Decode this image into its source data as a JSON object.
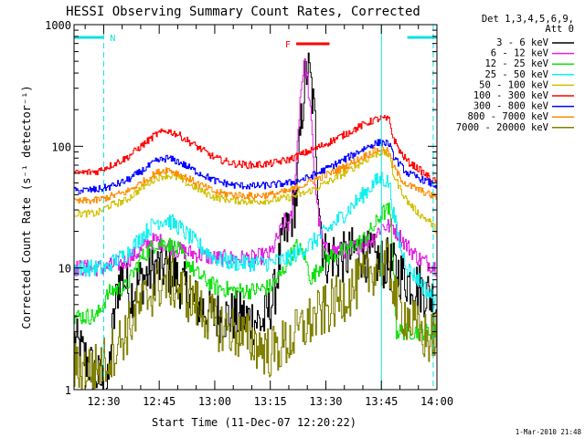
{
  "chart_data": {
    "type": "line",
    "title": "HESSI Observing Summary Count Rates, Corrected",
    "xlabel": "Start Time (11-Dec-07 12:20:22)",
    "ylabel": "Corrected Count Rate (s⁻¹ detector⁻¹)",
    "y_scale": "log",
    "ylim": [
      1,
      1000
    ],
    "xlim_minutes_after_12_20": [
      2,
      100
    ],
    "x_ticks": [
      {
        "label": "12:30",
        "min": 10
      },
      {
        "label": "12:45",
        "min": 25
      },
      {
        "label": "13:00",
        "min": 40
      },
      {
        "label": "13:15",
        "min": 55
      },
      {
        "label": "13:30",
        "min": 70
      },
      {
        "label": "13:45",
        "min": 85
      },
      {
        "label": "14:00",
        "min": 100
      }
    ],
    "y_ticks": [
      {
        "label": "1",
        "value": 1
      },
      {
        "label": "10",
        "value": 10
      },
      {
        "label": "100",
        "value": 100
      },
      {
        "label": "1000",
        "value": 1000
      }
    ],
    "legend_header": [
      "Det 1,3,4,5,6,9,",
      "Att 0"
    ],
    "legend_position": "right",
    "series": [
      {
        "name": "3 - 6 keV",
        "color": "#000000",
        "x": [
          2,
          8,
          11,
          12,
          14,
          15,
          17,
          20,
          24,
          27,
          30,
          35,
          40,
          45,
          50,
          53,
          55,
          56,
          58,
          60,
          62,
          63,
          64,
          65,
          66,
          67,
          68,
          69,
          70,
          71,
          72,
          75,
          78,
          80,
          82,
          85,
          86,
          88,
          90,
          92,
          95,
          98,
          100
        ],
        "y": [
          2.5,
          1.3,
          1.0,
          2.5,
          8,
          9,
          6,
          8,
          10,
          10,
          8,
          5,
          4,
          4,
          3.8,
          3.5,
          5,
          6,
          15,
          22,
          40,
          120,
          300,
          450,
          300,
          150,
          40,
          15,
          12,
          12,
          13,
          12,
          14,
          13,
          12,
          11,
          11,
          10,
          9,
          8,
          7,
          6,
          5
        ]
      },
      {
        "name": "6 - 12 keV",
        "color": "#e020e0",
        "x": [
          2,
          8,
          11,
          12,
          15,
          17,
          20,
          22,
          24,
          26,
          28,
          30,
          35,
          40,
          45,
          50,
          55,
          57,
          59,
          60,
          61,
          62,
          63,
          64,
          65,
          66,
          67,
          68,
          69,
          70,
          72,
          75,
          78,
          80,
          82,
          84,
          85,
          88,
          90,
          92,
          95,
          100
        ],
        "y": [
          10,
          10,
          10,
          10.5,
          11,
          12,
          14,
          16,
          17,
          16,
          15,
          14,
          13,
          12,
          12,
          12,
          13,
          18,
          25,
          22,
          30,
          80,
          250,
          500,
          350,
          150,
          50,
          25,
          16,
          14,
          14,
          14,
          15,
          16,
          17,
          20,
          22,
          22,
          18,
          15,
          12,
          10
        ]
      },
      {
        "name": "12 - 25 keV",
        "color": "#10e010",
        "x": [
          2,
          8,
          11,
          12,
          16,
          20,
          24,
          27,
          30,
          35,
          40,
          45,
          50,
          55,
          58,
          60,
          62,
          64,
          65,
          66,
          67,
          68,
          70,
          75,
          80,
          83,
          85,
          87,
          88,
          89,
          92,
          95,
          100
        ],
        "y": [
          4,
          4,
          6,
          6.5,
          7,
          12,
          16,
          16,
          14,
          9,
          7,
          6.5,
          6.5,
          7,
          9,
          12,
          15,
          13,
          10,
          8,
          9,
          10,
          12,
          14,
          17,
          22,
          28,
          30,
          14,
          3,
          3,
          3,
          3
        ]
      },
      {
        "name": "25 - 50 keV",
        "color": "#10f0f0",
        "x": [
          2,
          8,
          11,
          12,
          16,
          20,
          24,
          27,
          30,
          35,
          40,
          45,
          50,
          55,
          60,
          65,
          70,
          75,
          80,
          83,
          85,
          87,
          88,
          90,
          92,
          95,
          98,
          100
        ],
        "y": [
          10,
          10,
          10,
          11,
          13,
          18,
          24,
          25,
          22,
          16,
          12,
          11,
          11,
          11,
          12,
          15,
          20,
          28,
          40,
          50,
          55,
          50,
          30,
          15,
          10,
          8,
          6,
          5
        ]
      },
      {
        "name": "50 - 100 keV",
        "color": "#d0c000",
        "x": [
          2,
          8,
          11,
          12,
          16,
          20,
          24,
          27,
          30,
          35,
          40,
          45,
          50,
          55,
          60,
          65,
          70,
          75,
          80,
          83,
          85,
          87,
          88,
          90,
          92,
          95,
          98,
          100
        ],
        "y": [
          28,
          28,
          32,
          33,
          36,
          45,
          55,
          58,
          55,
          45,
          38,
          36,
          35,
          36,
          38,
          42,
          50,
          60,
          75,
          85,
          90,
          85,
          60,
          45,
          35,
          28,
          24,
          20
        ]
      },
      {
        "name": "100 - 300 keV",
        "color": "#ff0000",
        "x": [
          2,
          8,
          11,
          12,
          16,
          20,
          24,
          27,
          30,
          35,
          40,
          45,
          50,
          55,
          60,
          65,
          70,
          75,
          80,
          83,
          85,
          87,
          88,
          90,
          92,
          95,
          98,
          100
        ],
        "y": [
          60,
          62,
          68,
          70,
          80,
          100,
          125,
          135,
          125,
          100,
          80,
          72,
          70,
          72,
          78,
          90,
          105,
          125,
          150,
          165,
          170,
          165,
          120,
          90,
          75,
          65,
          55,
          50
        ]
      },
      {
        "name": "300 - 800 keV",
        "color": "#0000ff",
        "x": [
          2,
          8,
          11,
          12,
          16,
          20,
          24,
          27,
          30,
          35,
          40,
          45,
          50,
          55,
          60,
          65,
          70,
          75,
          80,
          83,
          85,
          87,
          88,
          90,
          92,
          95,
          98,
          100
        ],
        "y": [
          43,
          44,
          46,
          47,
          52,
          62,
          75,
          80,
          75,
          62,
          52,
          48,
          47,
          48,
          50,
          55,
          65,
          78,
          95,
          105,
          108,
          105,
          85,
          70,
          60,
          55,
          50,
          47
        ]
      },
      {
        "name": "800 - 7000 keV",
        "color": "#ff8c00",
        "x": [
          2,
          8,
          11,
          12,
          16,
          20,
          24,
          27,
          30,
          35,
          40,
          45,
          50,
          55,
          60,
          65,
          70,
          75,
          80,
          83,
          85,
          87,
          88,
          90,
          92,
          95,
          98,
          100
        ],
        "y": [
          35,
          36,
          38,
          39,
          42,
          50,
          60,
          65,
          60,
          50,
          42,
          40,
          39,
          40,
          43,
          50,
          58,
          68,
          82,
          92,
          95,
          90,
          70,
          55,
          48,
          44,
          40,
          38
        ]
      },
      {
        "name": "7000 - 20000 keV",
        "color": "#808000",
        "x": [
          2,
          8,
          11,
          12,
          16,
          20,
          24,
          27,
          30,
          35,
          40,
          45,
          50,
          55,
          60,
          65,
          70,
          75,
          80,
          83,
          85,
          87,
          88,
          89,
          92,
          95,
          98,
          100
        ],
        "y": [
          1.5,
          1.5,
          1.8,
          2,
          3,
          5,
          7,
          8,
          7,
          5,
          3.5,
          3,
          2.5,
          2,
          2.5,
          3.5,
          4.5,
          6,
          8,
          10,
          11,
          10,
          8,
          5,
          4,
          3,
          2.5,
          3
        ]
      }
    ],
    "annotations": [
      {
        "label": "N",
        "color": "#10e0e0",
        "kind": "night",
        "intervals_min": [
          [
            2,
            10
          ],
          [
            92,
            100
          ]
        ],
        "dashed_min": [
          10,
          99
        ]
      },
      {
        "label": "F",
        "color": "#ff0000",
        "kind": "flare",
        "interval_min": [
          62,
          71
        ]
      },
      {
        "kind": "saa",
        "color": "#10e0e0",
        "vline_min": 85
      }
    ],
    "footer": "1-Mar-2010 21:48"
  }
}
